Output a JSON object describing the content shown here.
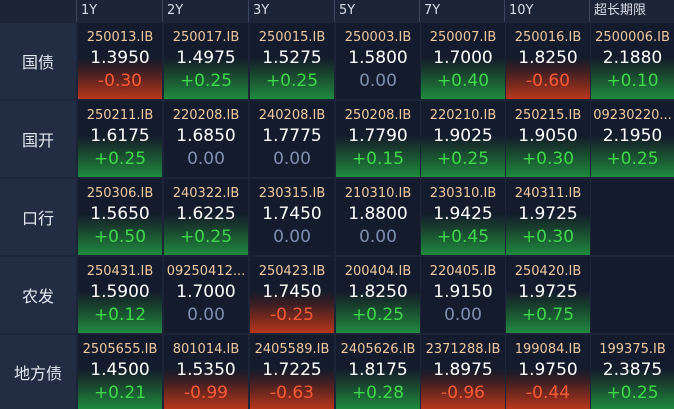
{
  "columns": [
    "1Y",
    "2Y",
    "3Y",
    "5Y",
    "7Y",
    "10Y",
    "超长期限"
  ],
  "rows": [
    {
      "label": "国债",
      "cells": [
        {
          "code": "250013.IB",
          "yield": "1.3950",
          "change": "-0.30"
        },
        {
          "code": "250017.IB",
          "yield": "1.4975",
          "change": "+0.25"
        },
        {
          "code": "250015.IB",
          "yield": "1.5275",
          "change": "+0.25"
        },
        {
          "code": "250003.IB",
          "yield": "1.5800",
          "change": "0.00"
        },
        {
          "code": "250007.IB",
          "yield": "1.7000",
          "change": "+0.40"
        },
        {
          "code": "250016.IB",
          "yield": "1.8250",
          "change": "-0.60"
        },
        {
          "code": "2500006.IB",
          "yield": "2.1880",
          "change": "+0.10"
        }
      ]
    },
    {
      "label": "国开",
      "cells": [
        {
          "code": "250211.IB",
          "yield": "1.6175",
          "change": "+0.25"
        },
        {
          "code": "220208.IB",
          "yield": "1.6850",
          "change": "0.00"
        },
        {
          "code": "240208.IB",
          "yield": "1.7775",
          "change": "0.00"
        },
        {
          "code": "250208.IB",
          "yield": "1.7790",
          "change": "+0.15"
        },
        {
          "code": "220210.IB",
          "yield": "1.9025",
          "change": "+0.25"
        },
        {
          "code": "250215.IB",
          "yield": "1.9050",
          "change": "+0.30"
        },
        {
          "code": "09230220...",
          "yield": "2.1950",
          "change": "+0.25"
        }
      ]
    },
    {
      "label": "口行",
      "cells": [
        {
          "code": "250306.IB",
          "yield": "1.5650",
          "change": "+0.50"
        },
        {
          "code": "240322.IB",
          "yield": "1.6225",
          "change": "+0.25"
        },
        {
          "code": "230315.IB",
          "yield": "1.7450",
          "change": "0.00"
        },
        {
          "code": "210310.IB",
          "yield": "1.8800",
          "change": "0.00"
        },
        {
          "code": "230310.IB",
          "yield": "1.9425",
          "change": "+0.45"
        },
        {
          "code": "240311.IB",
          "yield": "1.9725",
          "change": "+0.30"
        },
        null
      ]
    },
    {
      "label": "农发",
      "cells": [
        {
          "code": "250431.IB",
          "yield": "1.5900",
          "change": "+0.12"
        },
        {
          "code": "09250412...",
          "yield": "1.7000",
          "change": "0.00"
        },
        {
          "code": "250423.IB",
          "yield": "1.7450",
          "change": "-0.25"
        },
        {
          "code": "200404.IB",
          "yield": "1.8250",
          "change": "+0.25"
        },
        {
          "code": "220405.IB",
          "yield": "1.9150",
          "change": "0.00"
        },
        {
          "code": "250420.IB",
          "yield": "1.9725",
          "change": "+0.75"
        },
        null
      ]
    },
    {
      "label": "地方债",
      "cells": [
        {
          "code": "2505655.IB",
          "yield": "1.4500",
          "change": "+0.21"
        },
        {
          "code": "801014.IB",
          "yield": "1.5350",
          "change": "-0.99"
        },
        {
          "code": "2405589.IB",
          "yield": "1.7225",
          "change": "-0.63"
        },
        {
          "code": "2405626.IB",
          "yield": "1.8175",
          "change": "+0.28"
        },
        {
          "code": "2371288.IB",
          "yield": "1.8975",
          "change": "-0.96"
        },
        {
          "code": "199084.IB",
          "yield": "1.9750",
          "change": "-0.44"
        },
        {
          "code": "199375.IB",
          "yield": "2.3875",
          "change": "+0.25"
        }
      ]
    }
  ]
}
